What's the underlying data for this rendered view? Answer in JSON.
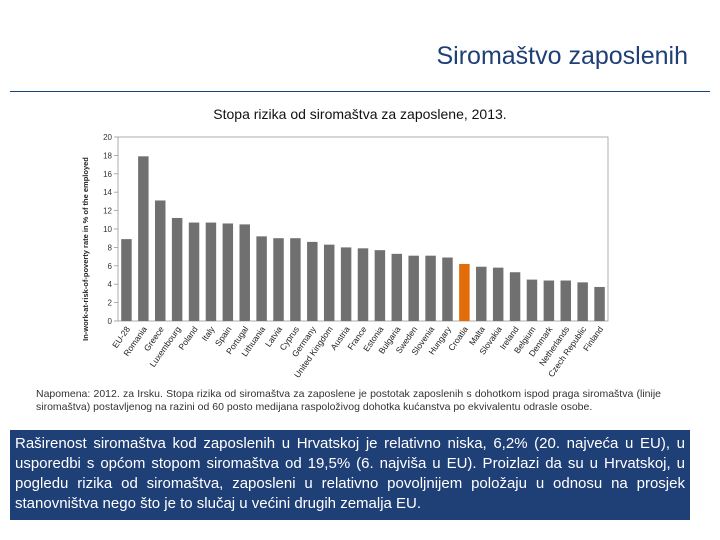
{
  "header": {
    "title": "Siromaštvo zaposlenih"
  },
  "chart_data": {
    "type": "bar",
    "title": "Stopa rizika od siromaštva za zaposlene, 2013.",
    "ylabel": "In-work-at-risk-of-poverty rate in % of the employed",
    "xlabel": "",
    "ylim": [
      0,
      20
    ],
    "yticks": [
      0,
      2,
      4,
      6,
      8,
      10,
      12,
      14,
      16,
      18,
      20
    ],
    "ytick_labels": [
      "0",
      "2",
      "4",
      "6",
      "8",
      "10",
      "12",
      "14",
      "16",
      "18",
      "20"
    ],
    "categories": [
      "EU-28",
      "Romania",
      "Greece",
      "Luxembourg",
      "Poland",
      "Italy",
      "Spain",
      "Portugal",
      "Lithuania",
      "Latvia",
      "Cyprus",
      "Germany",
      "United Kingdom",
      "Austria",
      "France",
      "Estonia",
      "Bulgaria",
      "Sweden",
      "Slovenia",
      "Hungary",
      "Croatia",
      "Malta",
      "Slovakia",
      "Ireland",
      "Belgium",
      "Denmark",
      "Netherlands",
      "Czech Republic",
      "Finland"
    ],
    "values": [
      8.9,
      17.9,
      13.1,
      11.2,
      10.7,
      10.7,
      10.6,
      10.5,
      9.2,
      9.0,
      9.0,
      8.6,
      8.3,
      8.0,
      7.9,
      7.7,
      7.3,
      7.1,
      7.1,
      6.9,
      6.2,
      5.9,
      5.8,
      5.3,
      4.5,
      4.4,
      4.4,
      4.2,
      3.7
    ],
    "bar_color": "#707070",
    "highlight": {
      "category": "Croatia",
      "color": "#e36c0a"
    },
    "grid": false
  },
  "note": "Napomena: 2012. za Irsku. Stopa rizika od siromaštva za zaposlene je postotak zaposlenih s dohotkom ispod praga siromaštva (linije siromaštva) postavljenog na razini od 60 posto medijana raspoloživog dohotka kućanstva po ekvivalentu odrasle osobe.",
  "summary": "Raširenost siromaštva kod zaposlenih u Hrvatskoj je relativno niska, 6,2% (20. najveća u EU), u usporedbi s općom stopom siromaštva od 19,5% (6. najviša u EU). Proizlazi da su u Hrvatskoj, u pogledu rizika od siromaštva, zaposleni u relativno povoljnijem položaju u odnosu na prosjek stanovništva nego što je to slučaj u većini drugih zemalja EU."
}
